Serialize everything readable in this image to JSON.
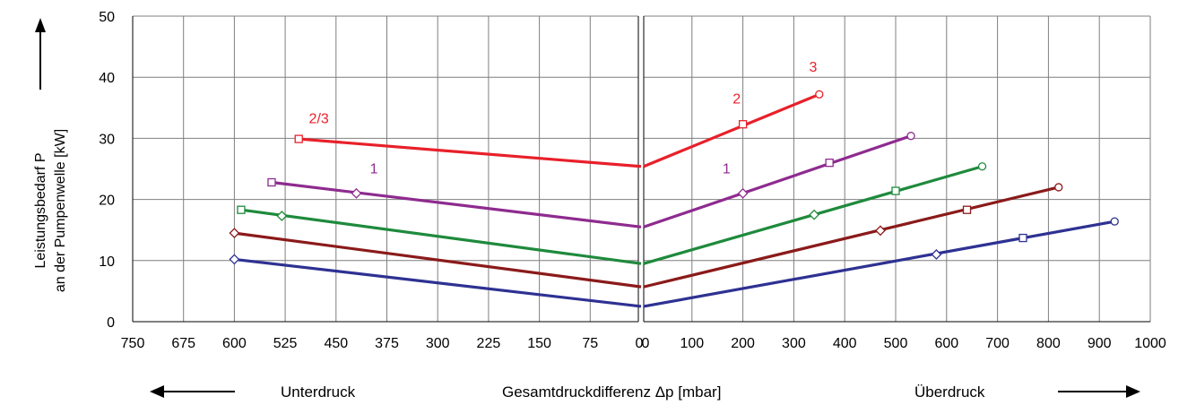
{
  "chart_data": {
    "type": "line",
    "y_axis": {
      "label_line1": "Leistungsbedarf P",
      "label_line2": "an der Pumpenwelle    [kW]",
      "range": [
        0,
        50
      ],
      "ticks": [
        "0",
        "10",
        "20",
        "30",
        "40",
        "50"
      ]
    },
    "left_axis": {
      "range": [
        750,
        0
      ],
      "ticks": [
        "750",
        "675",
        "600",
        "525",
        "450",
        "375",
        "300",
        "225",
        "150",
        "75",
        "0"
      ]
    },
    "right_axis": {
      "range": [
        0,
        1000
      ],
      "ticks": [
        "0",
        "100",
        "200",
        "300",
        "400",
        "500",
        "600",
        "700",
        "800",
        "900",
        "1000"
      ]
    },
    "xlabel": "Gesamtdruckdifferenz Δp  [mbar]",
    "left_caption": "Unterdruck",
    "right_caption": "Überdruck",
    "grid": true,
    "series": [
      {
        "color": "#2e3192",
        "left": [
          [
            600,
            10.2
          ],
          [
            0,
            2.5
          ]
        ],
        "left_markers": [
          [
            600,
            10.2,
            "diamond"
          ]
        ],
        "right": [
          [
            0,
            2.5
          ],
          [
            930,
            16.4
          ]
        ],
        "right_markers": [
          [
            580,
            11.0,
            "diamond"
          ],
          [
            750,
            13.7,
            "square"
          ],
          [
            930,
            16.4,
            "circle"
          ]
        ]
      },
      {
        "color": "#8b1a1a",
        "left": [
          [
            600,
            14.5
          ],
          [
            0,
            5.7
          ]
        ],
        "left_markers": [
          [
            600,
            14.5,
            "diamond"
          ]
        ],
        "right": [
          [
            0,
            5.7
          ],
          [
            820,
            22.0
          ]
        ],
        "right_markers": [
          [
            470,
            14.9,
            "diamond"
          ],
          [
            640,
            18.3,
            "square"
          ],
          [
            820,
            22.0,
            "circle"
          ]
        ]
      },
      {
        "color": "#1e8a3c",
        "left": [
          [
            590,
            18.3
          ],
          [
            0,
            9.5
          ]
        ],
        "left_markers": [
          [
            590,
            18.3,
            "square"
          ],
          [
            530,
            17.3,
            "diamond"
          ]
        ],
        "right": [
          [
            0,
            9.5
          ],
          [
            670,
            25.4
          ]
        ],
        "right_markers": [
          [
            340,
            17.5,
            "diamond"
          ],
          [
            500,
            21.4,
            "square"
          ],
          [
            670,
            25.4,
            "circle"
          ]
        ]
      },
      {
        "color": "#8e2b8f",
        "left": [
          [
            545,
            22.8
          ],
          [
            0,
            15.5
          ]
        ],
        "left_markers": [
          [
            545,
            22.8,
            "square"
          ],
          [
            420,
            21.0,
            "diamond"
          ]
        ],
        "right": [
          [
            0,
            15.5
          ],
          [
            530,
            30.4
          ]
        ],
        "right_markers": [
          [
            200,
            21.0,
            "diamond"
          ],
          [
            370,
            26.0,
            "square"
          ],
          [
            530,
            30.4,
            "circle"
          ]
        ]
      },
      {
        "color": "#e8202a",
        "left": [
          [
            505,
            29.9
          ],
          [
            0,
            25.4
          ]
        ],
        "left_markers": [
          [
            505,
            29.9,
            "square"
          ]
        ],
        "right": [
          [
            0,
            25.4
          ],
          [
            350,
            37.2
          ]
        ],
        "right_markers": [
          [
            200,
            32.3,
            "square"
          ],
          [
            350,
            37.2,
            "circle"
          ]
        ]
      }
    ],
    "annotations": [
      {
        "text": "2/3",
        "side": "left",
        "x": 490,
        "y": 32.5,
        "color": "red"
      },
      {
        "text": "1",
        "side": "left",
        "x": 400,
        "y": 24.3,
        "color": "purple"
      },
      {
        "text": "3",
        "side": "right",
        "x": 330,
        "y": 40.9,
        "color": "red"
      },
      {
        "text": "2",
        "side": "right",
        "x": 180,
        "y": 35.7,
        "color": "red"
      },
      {
        "text": "1",
        "side": "right",
        "x": 160,
        "y": 24.3,
        "color": "purple"
      }
    ]
  }
}
